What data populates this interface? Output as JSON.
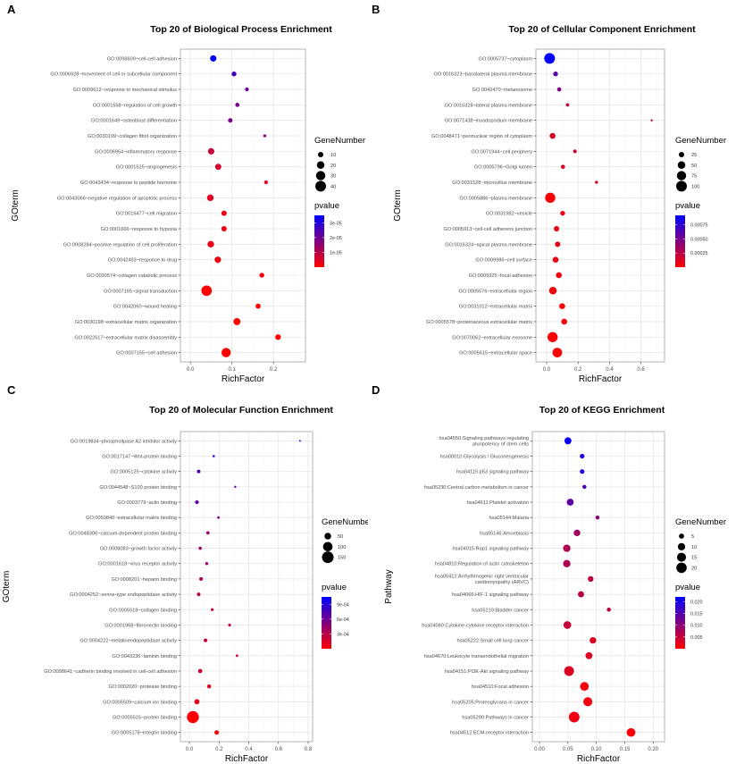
{
  "chart_data": [
    {
      "panel": "A",
      "type": "scatter",
      "title": "Top 20 of Biological Process Enrichment",
      "xlabel": "RichFactor",
      "ylabel": "GOterm",
      "xlim": [
        -0.024,
        0.277
      ],
      "xticks": [
        0.0,
        0.1,
        0.2
      ],
      "tick_decimals": 1,
      "size_legend": {
        "title": "GeneNumber",
        "values": [
          10,
          20,
          30,
          40
        ]
      },
      "color_legend": {
        "title": "pvalue",
        "range": [
          0,
          3.5e-05
        ],
        "ticks": [
          1e-05,
          2e-05,
          3e-05
        ],
        "labels": [
          "1e-05",
          "2e-05",
          "3e-05"
        ],
        "low_color": "#FF0000",
        "high_color": "#0000FF"
      },
      "size_k": 0.95,
      "points": [
        {
          "term": "GO:0098609~cell-cell adhesion",
          "rich": 0.055,
          "genes": 14,
          "p": 3.5e-05
        },
        {
          "term": "GO:0006928~movement of cell or subcellular component",
          "rich": 0.105,
          "genes": 8,
          "p": 2.6e-05
        },
        {
          "term": "GO:0009612~response to mechanical stimulus",
          "rich": 0.136,
          "genes": 5,
          "p": 2.1e-05
        },
        {
          "term": "GO:0001558~regulation of cell growth",
          "rich": 0.113,
          "genes": 6,
          "p": 1.9e-05
        },
        {
          "term": "GO:0001649~osteoblast differentiation",
          "rich": 0.096,
          "genes": 7,
          "p": 1.8e-05
        },
        {
          "term": "GO:0030199~collagen fibril organization",
          "rich": 0.179,
          "genes": 3,
          "p": 1.5e-05
        },
        {
          "term": "GO:0006954~inflammatory response",
          "rich": 0.05,
          "genes": 14,
          "p": 8e-06
        },
        {
          "term": "GO:0001525~angiogenesis",
          "rich": 0.067,
          "genes": 13,
          "p": 6e-06
        },
        {
          "term": "GO:0043434~response to peptide hormone",
          "rich": 0.182,
          "genes": 5,
          "p": 5e-06
        },
        {
          "term": "GO:0043066~negative regulation of apoptotic process",
          "rich": 0.048,
          "genes": 15,
          "p": 4e-06
        },
        {
          "term": "GO:0016477~cell migration",
          "rich": 0.081,
          "genes": 10,
          "p": 3e-06
        },
        {
          "term": "GO:0001666~response to hypoxia",
          "rich": 0.081,
          "genes": 10,
          "p": 3e-06
        },
        {
          "term": "GO:0008284~positive regulation of cell proliferation",
          "rich": 0.049,
          "genes": 15,
          "p": 2.5e-06
        },
        {
          "term": "GO:0042493~response to drug",
          "rich": 0.066,
          "genes": 14,
          "p": 2e-06
        },
        {
          "term": "GO:0030574~collagen catabolic process",
          "rich": 0.172,
          "genes": 8,
          "p": 1e-06
        },
        {
          "term": "GO:0007165~signal transduction",
          "rich": 0.039,
          "genes": 38,
          "p": 5e-07
        },
        {
          "term": "GO:0042060~wound healing",
          "rich": 0.163,
          "genes": 9,
          "p": 5e-07
        },
        {
          "term": "GO:0030198~extracellular matrix organization",
          "rich": 0.112,
          "genes": 17,
          "p": 1e-07
        },
        {
          "term": "GO:0022617~extracellular matrix disassembly",
          "rich": 0.211,
          "genes": 11,
          "p": 1e-07
        },
        {
          "term": "GO:0007155~cell adhesion",
          "rich": 0.086,
          "genes": 30,
          "p": 1e-08
        }
      ]
    },
    {
      "panel": "B",
      "type": "scatter",
      "title": "Top 20 of Cellular Component Enrichment",
      "xlabel": "RichFactor",
      "ylabel": "GOterm",
      "xlim": [
        -0.068,
        0.75
      ],
      "xticks": [
        0.0,
        0.2,
        0.4,
        0.6
      ],
      "tick_decimals": 1,
      "size_legend": {
        "title": "GeneNumber",
        "values": [
          25,
          50,
          75,
          100
        ]
      },
      "color_legend": {
        "title": "pvalue",
        "range": [
          0,
          0.00092
        ],
        "ticks": [
          0.00025,
          0.0005,
          0.00075
        ],
        "labels": [
          "0.00025",
          "0.00050",
          "0.00075"
        ],
        "low_color": "#FF0000",
        "high_color": "#0000FF"
      },
      "size_k": 0.6,
      "points": [
        {
          "term": "GO:0005737~cytoplasm",
          "rich": 0.019,
          "genes": 100,
          "p": 0.00092
        },
        {
          "term": "GO:0016323~basolateral plasma membrane",
          "rich": 0.057,
          "genes": 20,
          "p": 0.0006
        },
        {
          "term": "GO:0042470~melanosome",
          "rich": 0.08,
          "genes": 15,
          "p": 0.00045
        },
        {
          "term": "GO:0016328~lateral plasma membrane",
          "rich": 0.133,
          "genes": 10,
          "p": 0.00025
        },
        {
          "term": "GO:0071438~invadopodium membrane",
          "rich": 0.668,
          "genes": 4,
          "p": 0.0003
        },
        {
          "term": "GO:0048471~perinuclear region of cytoplasm",
          "rich": 0.038,
          "genes": 30,
          "p": 0.00015
        },
        {
          "term": "GO:0071944~cell periphery",
          "rich": 0.18,
          "genes": 12,
          "p": 0.0002
        },
        {
          "term": "GO:0005796~Golgi lumen",
          "rich": 0.104,
          "genes": 15,
          "p": 0.00015
        },
        {
          "term": "GO:0031528~microvillus membrane",
          "rich": 0.317,
          "genes": 8,
          "p": 0.00015
        },
        {
          "term": "GO:0005886~plasma membrane",
          "rich": 0.023,
          "genes": 90,
          "p": 2e-05
        },
        {
          "term": "GO:0031982~vesicle",
          "rich": 0.102,
          "genes": 20,
          "p": 8e-05
        },
        {
          "term": "GO:0005913~cell-cell adherens junction",
          "rich": 0.063,
          "genes": 25,
          "p": 8e-05
        },
        {
          "term": "GO:0016324~apical plasma membrane",
          "rich": 0.07,
          "genes": 25,
          "p": 0.0001
        },
        {
          "term": "GO:0009986~cell surface",
          "rich": 0.057,
          "genes": 30,
          "p": 6e-05
        },
        {
          "term": "GO:0005925~focal adhesion",
          "rich": 0.078,
          "genes": 30,
          "p": 5e-05
        },
        {
          "term": "GO:0005576~extracellular region",
          "rich": 0.04,
          "genes": 50,
          "p": 3e-05
        },
        {
          "term": "GO:0031012~extracellular matrix",
          "rich": 0.099,
          "genes": 30,
          "p": 2e-05
        },
        {
          "term": "GO:0005578~proteinaceous extracellular matrix",
          "rich": 0.112,
          "genes": 30,
          "p": 2e-05
        },
        {
          "term": "GO:0070062~extracellular exosome",
          "rich": 0.038,
          "genes": 90,
          "p": 1e-05
        },
        {
          "term": "GO:0005615~extracellular space",
          "rich": 0.068,
          "genes": 80,
          "p": 1e-05
        }
      ]
    },
    {
      "panel": "C",
      "type": "scatter",
      "title": "Top 20 of Molecular Function Enrichment",
      "xlabel": "RichFactor",
      "ylabel": "GOterm",
      "xlim": [
        -0.06,
        0.83
      ],
      "xticks": [
        0.0,
        0.2,
        0.4,
        0.6,
        0.8
      ],
      "tick_decimals": 1,
      "size_legend": {
        "title": "GeneNumber",
        "values": [
          50,
          100,
          150
        ]
      },
      "color_legend": {
        "title": "pvalue",
        "range": [
          0,
          0.00105
        ],
        "ticks": [
          0.0003,
          0.0006,
          0.0009
        ],
        "labels": [
          "3e-04",
          "6e-04",
          "9e-04"
        ],
        "low_color": "#FF0000",
        "high_color": "#0000FF"
      },
      "size_k": 0.53,
      "points": [
        {
          "term": "GO:0019834~phospholipase A2 inhibitor activity",
          "rich": 0.745,
          "genes": 3,
          "p": 0.001
        },
        {
          "term": "GO:0017147~Wnt-protein binding",
          "rich": 0.164,
          "genes": 6,
          "p": 0.0008
        },
        {
          "term": "GO:0005125~cytokine activity",
          "rich": 0.063,
          "genes": 14,
          "p": 0.00075
        },
        {
          "term": "GO:0044548~S100 protein binding",
          "rich": 0.309,
          "genes": 5,
          "p": 0.0007
        },
        {
          "term": "GO:0003779~actin binding",
          "rich": 0.051,
          "genes": 16,
          "p": 0.00065
        },
        {
          "term": "GO:0050840~extracellular matrix binding",
          "rich": 0.196,
          "genes": 7,
          "p": 0.0005
        },
        {
          "term": "GO:0048306~calcium-dependent protein binding",
          "rich": 0.125,
          "genes": 12,
          "p": 0.0004
        },
        {
          "term": "GO:0008083~growth factor activity",
          "rich": 0.073,
          "genes": 12,
          "p": 0.00038
        },
        {
          "term": "GO:0001618~virus receptor activity",
          "rich": 0.117,
          "genes": 10,
          "p": 0.00035
        },
        {
          "term": "GO:0008201~heparin binding",
          "rich": 0.079,
          "genes": 15,
          "p": 0.00033
        },
        {
          "term": "GO:0004252~serine-type endopeptidase activity",
          "rich": 0.063,
          "genes": 14,
          "p": 0.0003
        },
        {
          "term": "GO:0005518~collagen binding",
          "rich": 0.154,
          "genes": 9,
          "p": 0.00025
        },
        {
          "term": "GO:0001968~fibronectin binding",
          "rich": 0.271,
          "genes": 9,
          "p": 0.00025
        },
        {
          "term": "GO:0004222~metalloendopeptidase activity",
          "rich": 0.109,
          "genes": 15,
          "p": 0.00025
        },
        {
          "term": "GO:0043236~laminin binding",
          "rich": 0.321,
          "genes": 7,
          "p": 0.0002
        },
        {
          "term": "GO:0098641~cadherin binding involved in cell-cell adhesion",
          "rich": 0.073,
          "genes": 20,
          "p": 0.0002
        },
        {
          "term": "GO:0002020~protease binding",
          "rich": 0.133,
          "genes": 18,
          "p": 0.00015
        },
        {
          "term": "GO:0005509~calcium ion binding",
          "rich": 0.051,
          "genes": 30,
          "p": 0.0001
        },
        {
          "term": "GO:0005515~protein binding",
          "rich": 0.024,
          "genes": 160,
          "p": 2e-05
        },
        {
          "term": "GO:0005178~integrin binding",
          "rich": 0.184,
          "genes": 22,
          "p": 5e-05
        }
      ]
    },
    {
      "panel": "D",
      "type": "scatter",
      "title": "Top 20 of KEGG Enrichment",
      "xlabel": "RichFactor",
      "ylabel": "Pathway",
      "xlim": [
        -0.0126,
        0.22
      ],
      "xticks": [
        0.0,
        0.05,
        0.1,
        0.15,
        0.2
      ],
      "tick_decimals": 2,
      "size_legend": {
        "title": "GeneNumber",
        "values": [
          5,
          10,
          15,
          20
        ]
      },
      "color_legend": {
        "title": "pvalue",
        "range": [
          0,
          0.022
        ],
        "ticks": [
          0.005,
          0.01,
          0.015,
          0.02
        ],
        "labels": [
          "0.005",
          "0.010",
          "0.015",
          "0.020"
        ],
        "low_color": "#FF0000",
        "high_color": "#0000FF"
      },
      "size_k": 1.3,
      "points": [
        {
          "term": "hsa04550:Signaling pathways regulating\npluripotency of stem cells",
          "rich": 0.05,
          "genes": 9,
          "p": 0.021
        },
        {
          "term": "hsa00010:Glycolysis / Gluconeogenesis",
          "rich": 0.075,
          "genes": 4,
          "p": 0.019
        },
        {
          "term": "hsa04115:p53 signaling pathway",
          "rich": 0.075,
          "genes": 4,
          "p": 0.019
        },
        {
          "term": "hsa05230:Central carbon metabolism in cancer",
          "rich": 0.079,
          "genes": 3,
          "p": 0.016
        },
        {
          "term": "hsa04611:Platelet activation",
          "rich": 0.054,
          "genes": 9,
          "p": 0.014
        },
        {
          "term": "hsa05144:Malaria",
          "rich": 0.102,
          "genes": 3,
          "p": 0.01
        },
        {
          "term": "hsa05146:Amoebiasis",
          "rich": 0.066,
          "genes": 8,
          "p": 0.008
        },
        {
          "term": "hsa04015:Rap1 signaling pathway",
          "rich": 0.048,
          "genes": 10,
          "p": 0.007
        },
        {
          "term": "hsa04810:Regulation of actin cytoskeleton",
          "rich": 0.048,
          "genes": 10,
          "p": 0.007
        },
        {
          "term": "hsa05412:Arrhythmogenic right ventricular\ncardiomyopathy (ARVC)",
          "rich": 0.09,
          "genes": 6,
          "p": 0.006
        },
        {
          "term": "hsa04066:HIF-1 signaling pathway",
          "rich": 0.073,
          "genes": 7,
          "p": 0.006
        },
        {
          "term": "hsa05219:Bladder cancer",
          "rich": 0.122,
          "genes": 3,
          "p": 0.006
        },
        {
          "term": "hsa04060:Cytokine-cytokine receptor interaction",
          "rich": 0.049,
          "genes": 11,
          "p": 0.005
        },
        {
          "term": "hsa05222:Small cell lung cancer",
          "rich": 0.094,
          "genes": 8,
          "p": 0.003
        },
        {
          "term": "hsa04670:Leukocyte transendothelial migration",
          "rich": 0.087,
          "genes": 9,
          "p": 0.003
        },
        {
          "term": "hsa04151:PI3K-Akt signaling pathway",
          "rich": 0.052,
          "genes": 18,
          "p": 0.003
        },
        {
          "term": "hsa04510:Focal adhesion",
          "rich": 0.079,
          "genes": 14,
          "p": 0.001
        },
        {
          "term": "hsa05205:Proteoglycans in cancer",
          "rich": 0.085,
          "genes": 15,
          "p": 0.0012
        },
        {
          "term": "hsa05200:Pathways in cancer",
          "rich": 0.061,
          "genes": 21,
          "p": 0.0015
        },
        {
          "term": "hsa04512:ECM-receptor interaction",
          "rich": 0.161,
          "genes": 14,
          "p": 0.0005
        }
      ]
    }
  ]
}
